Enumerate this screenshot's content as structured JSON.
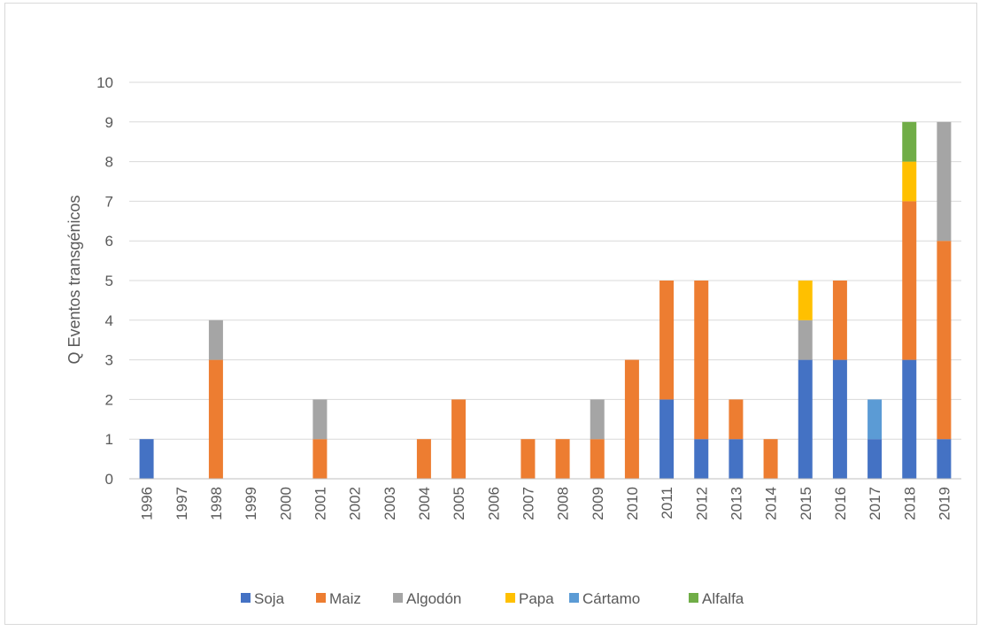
{
  "chart_data": {
    "type": "bar",
    "stacked": true,
    "title": "",
    "xlabel": "",
    "ylabel": "Q Eventos transgénicos",
    "ylim": [
      0,
      10
    ],
    "yticks": [
      "0",
      "1",
      "2",
      "3",
      "4",
      "5",
      "6",
      "7",
      "8",
      "9",
      "10"
    ],
    "grid": "horizontal",
    "legend_position": "bottom",
    "categories": [
      "1996",
      "1997",
      "1998",
      "1999",
      "2000",
      "2001",
      "2002",
      "2003",
      "2004",
      "2005",
      "2006",
      "2007",
      "2008",
      "2009",
      "2010",
      "2011",
      "2012",
      "2013",
      "2014",
      "2015",
      "2016",
      "2017",
      "2018",
      "2019"
    ],
    "series": [
      {
        "name": "Soja",
        "color": "#4472c4",
        "values": [
          1,
          0,
          0,
          0,
          0,
          0,
          0,
          0,
          0,
          0,
          0,
          0,
          0,
          0,
          0,
          2,
          1,
          1,
          0,
          3,
          3,
          1,
          3,
          1
        ]
      },
      {
        "name": "Maiz",
        "color": "#ed7d31",
        "values": [
          0,
          0,
          3,
          0,
          0,
          1,
          0,
          0,
          1,
          2,
          0,
          1,
          1,
          1,
          3,
          3,
          4,
          1,
          1,
          0,
          2,
          0,
          4,
          5
        ]
      },
      {
        "name": "Algodón",
        "color": "#a5a5a5",
        "values": [
          0,
          0,
          1,
          0,
          0,
          1,
          0,
          0,
          0,
          0,
          0,
          0,
          0,
          1,
          0,
          0,
          0,
          0,
          0,
          1,
          0,
          0,
          0,
          3
        ]
      },
      {
        "name": "Papa",
        "color": "#ffc000",
        "values": [
          0,
          0,
          0,
          0,
          0,
          0,
          0,
          0,
          0,
          0,
          0,
          0,
          0,
          0,
          0,
          0,
          0,
          0,
          0,
          1,
          0,
          0,
          1,
          0
        ]
      },
      {
        "name": "Cártamo",
        "color": "#5b9bd5",
        "values": [
          0,
          0,
          0,
          0,
          0,
          0,
          0,
          0,
          0,
          0,
          0,
          0,
          0,
          0,
          0,
          0,
          0,
          0,
          0,
          0,
          0,
          1,
          0,
          0
        ]
      },
      {
        "name": "Alfalfa",
        "color": "#70ad47",
        "values": [
          0,
          0,
          0,
          0,
          0,
          0,
          0,
          0,
          0,
          0,
          0,
          0,
          0,
          0,
          0,
          0,
          0,
          0,
          0,
          0,
          0,
          0,
          1,
          0
        ]
      }
    ]
  }
}
